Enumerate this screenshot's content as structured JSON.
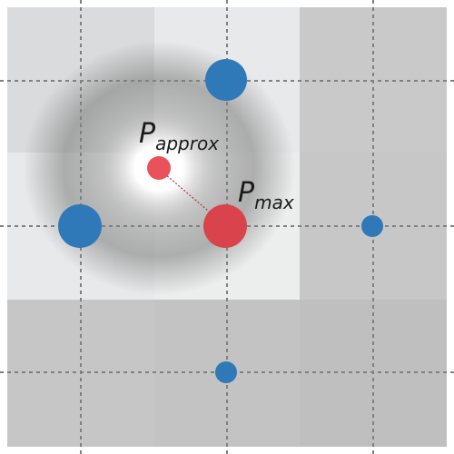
{
  "labels": {
    "approx_symbol": "P",
    "approx_subscript": "approx",
    "max_symbol": "P",
    "max_subscript": "max"
  },
  "colors": {
    "cell_dark": "#c2c2c2",
    "cell_medium": "#d2d3d4",
    "cell_light": "#e1e2e3",
    "cell_center": "#e6e7e8",
    "cell_very_light": "#eeeeee",
    "grid_line": "#808080",
    "blue_point": "#2c78b7",
    "red_point_large": "#d9434b",
    "red_point_small": "#e9525b",
    "connector": "#a63a3a",
    "shadow": "#555555"
  },
  "icons": {
    "approx_point": "red-dot",
    "max_point": "red-dot",
    "sample_points": "blue-dot"
  }
}
